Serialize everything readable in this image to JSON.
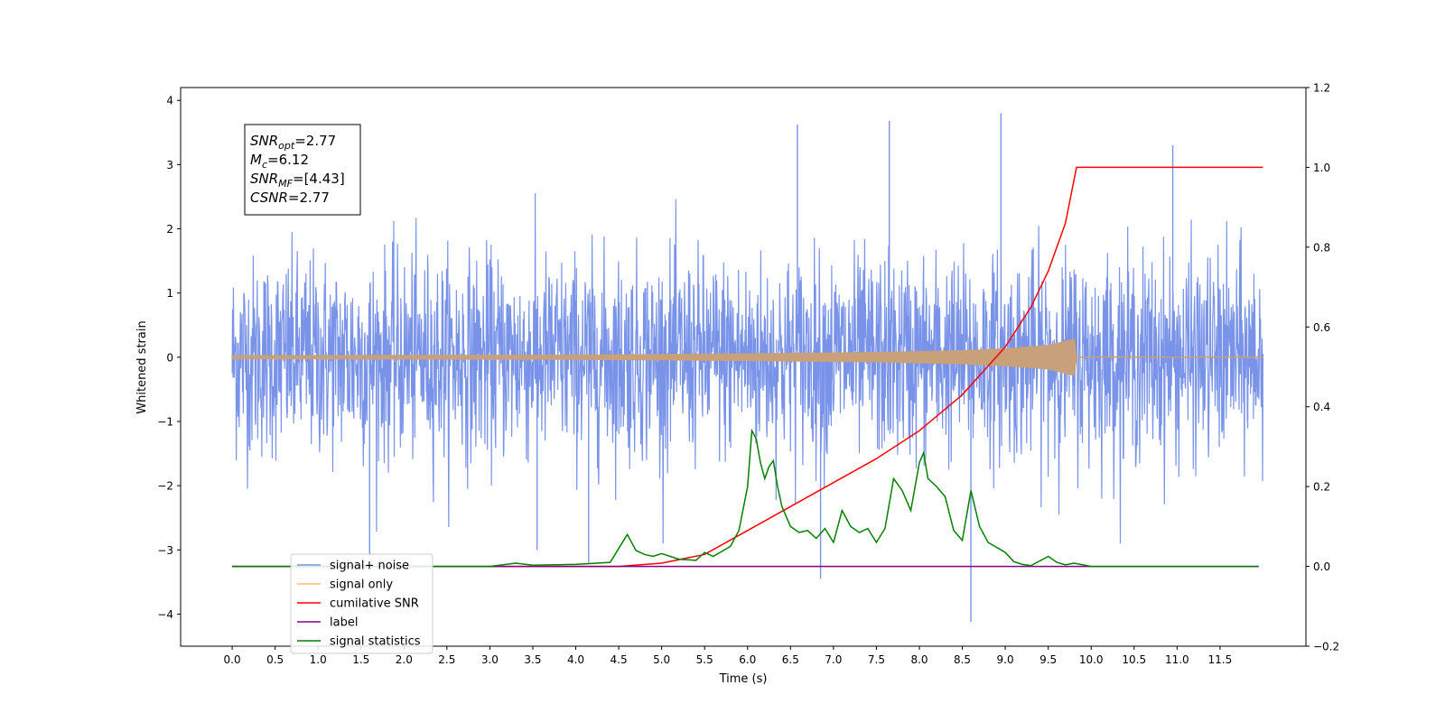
{
  "chart_data": {
    "type": "line",
    "xlabel": "Time (s)",
    "ylabel": "Whitened strain",
    "xlim": [
      -0.6,
      12.5
    ],
    "ylim": [
      -4.5,
      4.2
    ],
    "y2lim": [
      -0.2,
      1.2
    ],
    "x_ticks": [
      "0.0",
      "0.5",
      "1.0",
      "1.5",
      "2.0",
      "2.5",
      "3.0",
      "3.5",
      "4.0",
      "4.5",
      "5.0",
      "5.5",
      "6.0",
      "6.5",
      "7.0",
      "7.5",
      "8.0",
      "8.5",
      "9.0",
      "9.5",
      "10.0",
      "10.5",
      "11.0",
      "11.5"
    ],
    "y_ticks": [
      "4",
      "3",
      "2",
      "1",
      "0",
      "−1",
      "−2",
      "−3",
      "−4"
    ],
    "y2_ticks": [
      "1.2",
      "1.0",
      "0.8",
      "0.6",
      "0.4",
      "0.2",
      "0.0",
      "−0.2"
    ],
    "grid": false,
    "legend_position": "lower-left",
    "annotation": {
      "lines": [
        {
          "base": "SNR",
          "sub": "opt",
          "rest": "=2.77"
        },
        {
          "base": "M",
          "sub": "c",
          "rest": "=6.12"
        },
        {
          "base": "SNR",
          "sub": "MF",
          "rest": "=[4.43]"
        },
        {
          "base": "CSNR",
          "sub": "",
          "rest": "=2.77"
        }
      ]
    },
    "series": [
      {
        "name": "signal+ noise",
        "color": "#7993e8",
        "axis": "left",
        "kind": "noise",
        "x_range": [
          0.0,
          12.0
        ],
        "envelope": [
          1.0,
          2.3
        ],
        "spikes": [
          [
            6.85,
            -3.45
          ],
          [
            8.6,
            -4.12
          ],
          [
            8.95,
            3.8
          ],
          [
            7.65,
            3.68
          ],
          [
            6.58,
            3.62
          ],
          [
            10.95,
            3.3
          ],
          [
            3.55,
            -3.0
          ],
          [
            4.15,
            -3.2
          ],
          [
            1.6,
            -3.1
          ]
        ]
      },
      {
        "name": "signal only",
        "color": "#c8a07a",
        "axis": "left",
        "kind": "chirp",
        "x": [
          0.0,
          4.0,
          6.0,
          7.5,
          8.5,
          9.0,
          9.5,
          9.8,
          9.83,
          12.0
        ],
        "amp": [
          0.02,
          0.03,
          0.05,
          0.07,
          0.1,
          0.13,
          0.18,
          0.28,
          0.0,
          0.0
        ]
      },
      {
        "name": "cumilative SNR",
        "color": "#ff0000",
        "axis": "right",
        "x": [
          0.0,
          4.5,
          5.0,
          5.5,
          6.0,
          6.5,
          7.0,
          7.5,
          8.0,
          8.5,
          9.0,
          9.3,
          9.5,
          9.7,
          9.83,
          11.0,
          12.0
        ],
        "values": [
          0.0,
          0.0,
          0.008,
          0.03,
          0.09,
          0.15,
          0.21,
          0.27,
          0.34,
          0.43,
          0.55,
          0.65,
          0.74,
          0.86,
          1.0,
          1.0,
          1.0
        ]
      },
      {
        "name": "label",
        "color": "#800080",
        "axis": "right",
        "x": [
          0.0,
          11.95
        ],
        "values": [
          0.0,
          0.0
        ]
      },
      {
        "name": "signal statistics",
        "color": "#008000",
        "axis": "right",
        "x": [
          0.0,
          3.0,
          3.3,
          3.5,
          4.0,
          4.4,
          4.5,
          4.6,
          4.7,
          4.8,
          4.9,
          5.0,
          5.2,
          5.4,
          5.5,
          5.6,
          5.8,
          5.9,
          6.0,
          6.05,
          6.1,
          6.15,
          6.2,
          6.25,
          6.3,
          6.35,
          6.4,
          6.5,
          6.6,
          6.7,
          6.8,
          6.9,
          7.0,
          7.1,
          7.2,
          7.3,
          7.4,
          7.5,
          7.6,
          7.7,
          7.8,
          7.9,
          8.0,
          8.05,
          8.1,
          8.2,
          8.3,
          8.4,
          8.5,
          8.6,
          8.7,
          8.8,
          9.0,
          9.1,
          9.2,
          9.3,
          9.5,
          9.6,
          9.7,
          9.8,
          10.0,
          11.95
        ],
        "values": [
          0.0,
          0.0,
          0.008,
          0.003,
          0.005,
          0.01,
          0.045,
          0.08,
          0.04,
          0.03,
          0.025,
          0.032,
          0.018,
          0.015,
          0.035,
          0.025,
          0.05,
          0.09,
          0.2,
          0.34,
          0.32,
          0.26,
          0.22,
          0.25,
          0.265,
          0.2,
          0.15,
          0.1,
          0.085,
          0.09,
          0.07,
          0.095,
          0.06,
          0.14,
          0.1,
          0.085,
          0.095,
          0.06,
          0.095,
          0.22,
          0.19,
          0.14,
          0.26,
          0.285,
          0.22,
          0.2,
          0.175,
          0.09,
          0.065,
          0.19,
          0.1,
          0.06,
          0.035,
          0.012,
          0.005,
          0.002,
          0.025,
          0.01,
          0.004,
          0.008,
          0.0,
          0.0
        ]
      }
    ],
    "legend": [
      {
        "label": "signal+ noise",
        "color": "#7993e8"
      },
      {
        "label": "signal only",
        "color": "#ffbf66"
      },
      {
        "label": "cumilative SNR",
        "color": "#ff0000"
      },
      {
        "label": "label",
        "color": "#800080"
      },
      {
        "label": "signal statistics",
        "color": "#008000"
      }
    ]
  }
}
